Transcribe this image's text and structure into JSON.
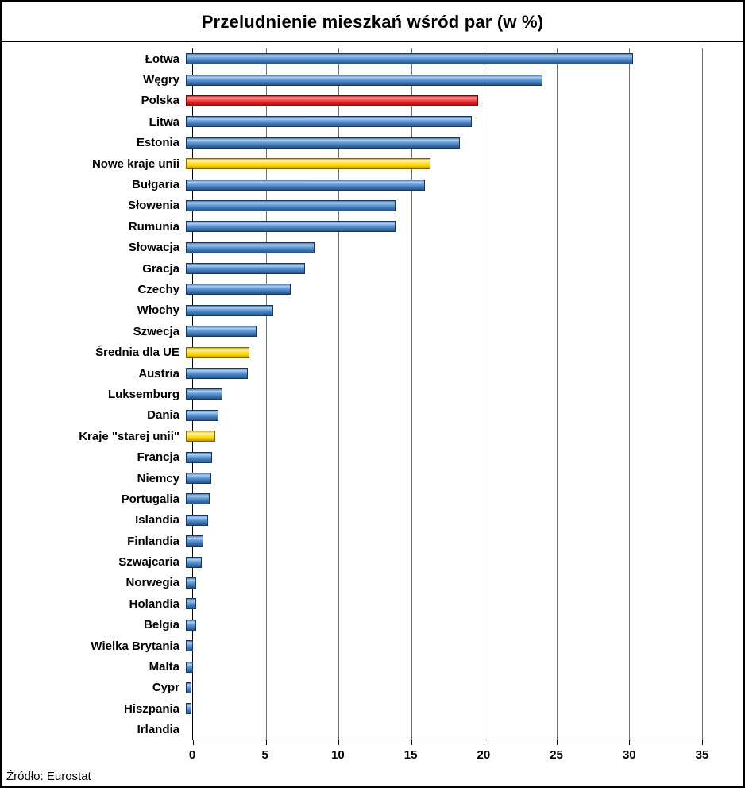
{
  "title": "Przeludnienie mieszkań wśród par (w %)",
  "source": "Źródło: Eurostat",
  "colors": {
    "blue": "#4F86C6",
    "red": "#E01818",
    "yellow": "#FFD400",
    "axis": "#000000",
    "gridline": "#6f6f6f"
  },
  "chart_data": {
    "type": "bar",
    "orientation": "horizontal",
    "title": "Przeludnienie mieszkań wśród par (w %)",
    "xlabel": "",
    "ylabel": "",
    "xlim": [
      0,
      35
    ],
    "xticks": [
      0,
      5,
      10,
      15,
      20,
      25,
      30,
      35
    ],
    "grid": true,
    "legend": false,
    "categories": [
      "Łotwa",
      "Węgry",
      "Polska",
      "Litwa",
      "Estonia",
      "Nowe kraje unii",
      "Bułgaria",
      "Słowenia",
      "Rumunia",
      "Słowacja",
      "Gracja",
      "Czechy",
      "Włochy",
      "Szwecja",
      "Średnia dla UE",
      "Austria",
      "Luksemburg",
      "Dania",
      "Kraje \"starej unii\"",
      "Francja",
      "Niemcy",
      "Portugalia",
      "Islandia",
      "Finlandia",
      "Szwajcaria",
      "Norwegia",
      "Holandia",
      "Belgia",
      "Wielka Brytania",
      "Malta",
      "Cypr",
      "Hiszpania",
      "Irlandia"
    ],
    "values": [
      30.3,
      24.2,
      19.8,
      19.4,
      18.6,
      16.6,
      16.2,
      14.2,
      14.2,
      8.7,
      8.1,
      7.1,
      5.9,
      4.8,
      4.3,
      4.2,
      2.5,
      2.2,
      2.0,
      1.8,
      1.7,
      1.6,
      1.5,
      1.2,
      1.1,
      0.7,
      0.7,
      0.7,
      0.5,
      0.5,
      0.4,
      0.4,
      0.0
    ],
    "bar_colors": [
      "blue",
      "blue",
      "red",
      "blue",
      "blue",
      "yellow",
      "blue",
      "blue",
      "blue",
      "blue",
      "blue",
      "blue",
      "blue",
      "blue",
      "yellow",
      "blue",
      "blue",
      "blue",
      "yellow",
      "blue",
      "blue",
      "blue",
      "blue",
      "blue",
      "blue",
      "blue",
      "blue",
      "blue",
      "blue",
      "blue",
      "blue",
      "blue",
      "blue"
    ]
  }
}
